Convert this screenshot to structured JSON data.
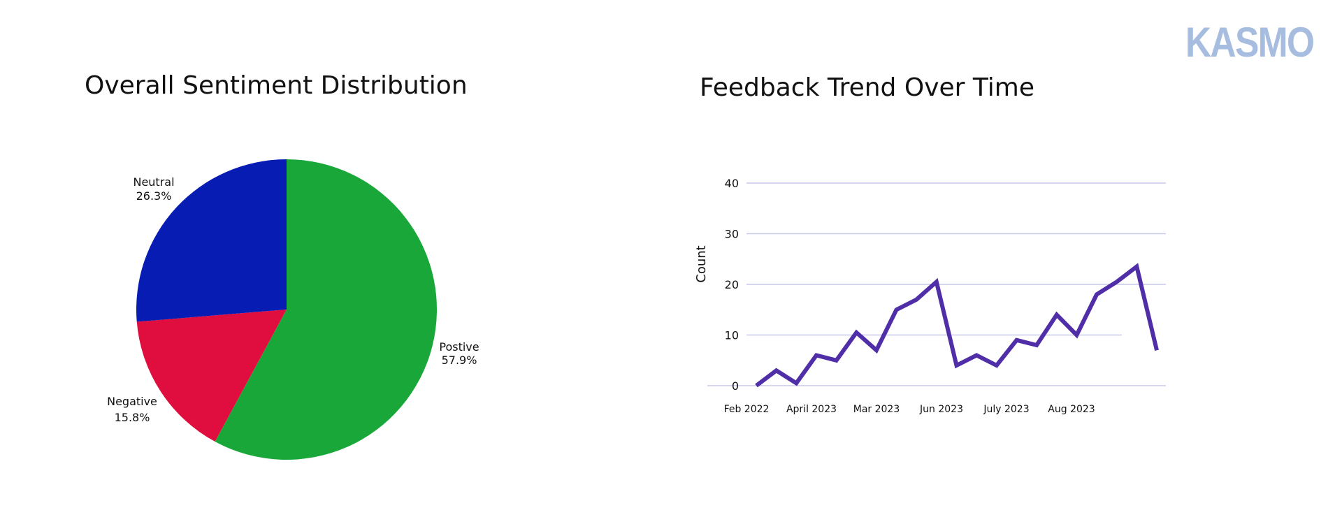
{
  "brand": {
    "logo_text": "KASMO",
    "logo_color": "#a6bde0"
  },
  "chart_data": [
    {
      "type": "pie",
      "title": "Overall Sentiment Distribution",
      "start_angle_deg": 0,
      "direction": "clockwise",
      "slices": [
        {
          "label": "Postive",
          "value": 57.9,
          "display": "57.9%",
          "color": "#18a738"
        },
        {
          "label": "Negative",
          "value": 15.8,
          "display": "15.8%",
          "color": "#e00e3e"
        },
        {
          "label": "Neutral",
          "value": 26.3,
          "display": "26.3%",
          "color": "#071cb3"
        }
      ]
    },
    {
      "type": "line",
      "title": "Feedback Trend Over Time",
      "ylabel": "Count",
      "xlabel": "",
      "ylim": [
        0,
        40
      ],
      "yticks": [
        0,
        10,
        20,
        30,
        40
      ],
      "grid": true,
      "line_color": "#4f2ea8",
      "grid_color": "#c9c9ea",
      "x_tick_labels": [
        "Feb 2022",
        "April 2023",
        "Mar 2023",
        "Jun 2023",
        "July 2023",
        "Aug 2023"
      ],
      "series": [
        {
          "values": [
            0,
            3,
            0.5,
            6,
            5,
            10.5,
            7,
            15,
            17,
            20.5,
            4,
            6,
            4,
            9,
            8,
            14,
            10,
            18,
            20.5,
            23.5,
            7
          ]
        }
      ]
    }
  ]
}
